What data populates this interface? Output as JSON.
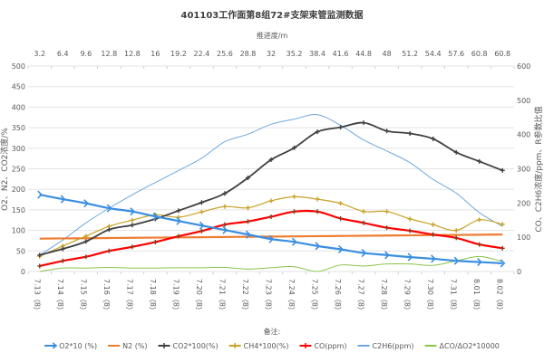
{
  "chart_data": {
    "type": "line",
    "title": "401103工作面第8组72#支架束管监测数据",
    "top_axis_title": "推进度/m",
    "top_ticks": [
      "3.2",
      "6.4",
      "9.6",
      "12.8",
      "12.8",
      "16",
      "19.2",
      "22.4",
      "25.6",
      "28.8",
      "32",
      "35.2",
      "38.4",
      "41.6",
      "44.8",
      "48",
      "51.2",
      "54.4",
      "57.6",
      "60.8",
      "60.8"
    ],
    "categories": [
      "7.13（8）",
      "7.14（8）",
      "7.15（8）",
      "7.16（8）",
      "7.17（8）",
      "7.18（8）",
      "7.19（8）",
      "7.20（8）",
      "7.21（8）",
      "7.22（8）",
      "7.23（8）",
      "7.24（8）",
      "7.25（8）",
      "7.26（8）",
      "7.27（8）",
      "7.28（8）",
      "7.29（8）",
      "7.30（8）",
      "7.31（8）",
      "8.01（8）",
      "8.02（8）"
    ],
    "ylabel": "O2、N2、CO2浓度/%",
    "y2label": "CO、C2H6浓度/ppm、R参数比值",
    "ylim": [
      0,
      500
    ],
    "y2lim": [
      0,
      600
    ],
    "yticks": [
      0,
      50,
      100,
      150,
      200,
      250,
      300,
      350,
      400,
      450,
      500
    ],
    "y2ticks": [
      0,
      100,
      200,
      300,
      400,
      500,
      600
    ],
    "grid": true,
    "legend_title": "备注:",
    "legend_position": "bottom",
    "series": [
      {
        "name": "O2*10 (%)",
        "axis": "left",
        "color": "#3a8ee0",
        "marker": "arrow",
        "values": [
          187,
          176,
          166,
          154,
          146,
          134,
          123,
          112,
          101,
          90,
          79,
          72,
          62,
          54,
          45,
          40,
          35,
          31,
          26,
          23,
          20
        ]
      },
      {
        "name": "N2 (%)",
        "axis": "left",
        "color": "#ed7d31",
        "marker": "none",
        "values": [
          80,
          80.5,
          81,
          81.5,
          82,
          82.5,
          83,
          83.5,
          84,
          84.5,
          85,
          85.5,
          86,
          86.5,
          87,
          87.5,
          88,
          88.5,
          89,
          89.5,
          90
        ]
      },
      {
        "name": "CO2*100(%)",
        "axis": "left",
        "color": "#404040",
        "marker": "plus",
        "values": [
          40,
          55,
          73,
          102,
          113,
          128,
          148,
          168,
          190,
          228,
          272,
          301,
          340,
          351,
          362,
          342,
          336,
          323,
          290,
          268,
          246
        ]
      },
      {
        "name": "CH4*100(%)",
        "axis": "left",
        "color": "#c9a227",
        "marker": "plus",
        "values": [
          37,
          62,
          86,
          110,
          125,
          138,
          132,
          145,
          158,
          155,
          172,
          182,
          176,
          166,
          146,
          146,
          128,
          114,
          100,
          126,
          115
        ]
      },
      {
        "name": "CO(ppm)",
        "axis": "right",
        "color": "#ff0000",
        "marker": "plus",
        "values": [
          16,
          31,
          43,
          60,
          72,
          86,
          103,
          118,
          137,
          146,
          160,
          175,
          175,
          155,
          142,
          128,
          119,
          108,
          98,
          79,
          68
        ]
      },
      {
        "name": "C2H6(ppm)",
        "axis": "right",
        "color": "#6fa8dc",
        "marker": "none",
        "values": [
          48,
          92,
          142,
          185,
          224,
          260,
          295,
          331,
          379,
          401,
          430,
          445,
          458,
          427,
          384,
          352,
          318,
          269,
          229,
          172,
          132
        ]
      },
      {
        "name": "ΔCO/ΔO2*10000",
        "axis": "right",
        "color": "#8bc34a",
        "marker": "none",
        "values": [
          0,
          10,
          10,
          12,
          10,
          10,
          11,
          11,
          12,
          7,
          11,
          14,
          0,
          19,
          16,
          22,
          22,
          18,
          31,
          44,
          29
        ]
      }
    ]
  }
}
